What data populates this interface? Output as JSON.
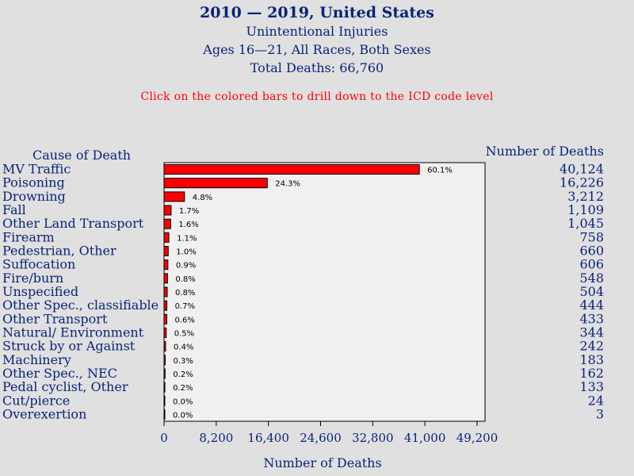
{
  "header": {
    "title": "2010 — 2019, United States",
    "subtitle1": "Unintentional Injuries",
    "subtitle2": "Ages 16—21, All Races, Both Sexes",
    "subtitle3": "Total Deaths: 66,760",
    "instruction": "Click on the colored bars to drill down to the ICD code level"
  },
  "chart_data": {
    "type": "bar",
    "orientation": "horizontal",
    "category_header": "Cause of Death",
    "value_header": "Number of Deaths",
    "xlabel": "Number of Deaths",
    "xlim": [
      0,
      49200
    ],
    "ticks": [
      0,
      8200,
      16400,
      24600,
      32800,
      41000,
      49200
    ],
    "tick_labels": [
      "0",
      "8,200",
      "16,400",
      "24,600",
      "32,800",
      "41,000",
      "49,200"
    ],
    "bar_color": "#ff0000",
    "categories": [
      "MV Traffic",
      "Poisoning",
      "Drowning",
      "Fall",
      "Other Land Transport",
      "Firearm",
      "Pedestrian, Other",
      "Suffocation",
      "Fire/burn",
      "Unspecified",
      "Other Spec., classifiable",
      "Other Transport",
      "Natural/ Environment",
      "Struck by or Against",
      "Machinery",
      "Other Spec., NEC",
      "Pedal cyclist, Other",
      "Cut/pierce",
      "Overexertion"
    ],
    "values": [
      40124,
      16226,
      3212,
      1109,
      1045,
      758,
      660,
      606,
      548,
      504,
      444,
      433,
      344,
      242,
      183,
      162,
      133,
      24,
      3
    ],
    "value_labels": [
      "40,124",
      "16,226",
      "3,212",
      "1,109",
      "1,045",
      "758",
      "660",
      "606",
      "548",
      "504",
      "444",
      "433",
      "344",
      "242",
      "183",
      "162",
      "133",
      "24",
      "3"
    ],
    "percent_labels": [
      "60.1%",
      "24.3%",
      "4.8%",
      "1.7%",
      "1.6%",
      "1.1%",
      "1.0%",
      "0.9%",
      "0.8%",
      "0.8%",
      "0.7%",
      "0.6%",
      "0.5%",
      "0.4%",
      "0.3%",
      "0.2%",
      "0.2%",
      "0.0%",
      "0.0%"
    ]
  }
}
